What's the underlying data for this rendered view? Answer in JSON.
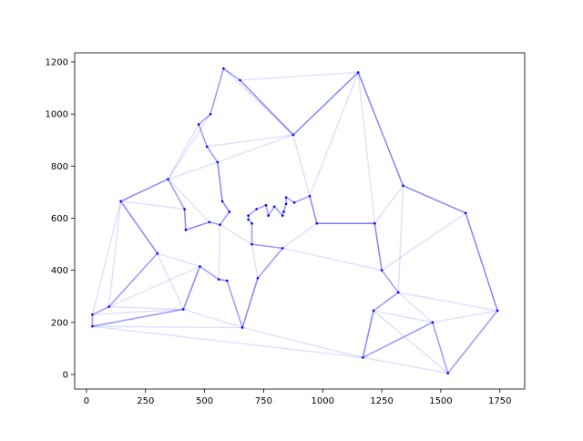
{
  "chart_data": {
    "type": "network",
    "x": [
      565,
      25,
      345,
      945,
      845,
      880,
      25,
      525,
      580,
      650,
      1605,
      1220,
      1465,
      1530,
      845,
      725,
      145,
      415,
      510,
      560,
      300,
      520,
      480,
      835,
      975,
      1215,
      1320,
      1250,
      660,
      410,
      420,
      575,
      1150,
      700,
      685,
      685,
      770,
      795,
      720,
      760,
      475,
      95,
      875,
      700,
      555,
      830,
      1170,
      830,
      605,
      595,
      1340,
      1740
    ],
    "y": [
      575,
      185,
      750,
      685,
      655,
      660,
      230,
      1000,
      1175,
      1130,
      620,
      580,
      200,
      5,
      680,
      370,
      665,
      635,
      875,
      365,
      465,
      585,
      415,
      625,
      580,
      245,
      315,
      400,
      180,
      250,
      555,
      665,
      1160,
      580,
      595,
      610,
      610,
      645,
      635,
      650,
      960,
      260,
      920,
      500,
      815,
      485,
      65,
      610,
      625,
      360,
      725,
      245
    ],
    "tour": [
      0,
      48,
      31,
      44,
      18,
      40,
      7,
      8,
      9,
      42,
      32,
      50,
      10,
      51,
      13,
      12,
      46,
      25,
      26,
      27,
      11,
      24,
      3,
      5,
      14,
      4,
      23,
      47,
      37,
      36,
      39,
      38,
      35,
      34,
      33,
      43,
      45,
      15,
      28,
      49,
      19,
      22,
      29,
      1,
      6,
      41,
      20,
      16,
      2,
      17,
      30,
      21,
      0
    ],
    "edges": [
      [
        32,
        42
      ],
      [
        32,
        11
      ],
      [
        32,
        50
      ],
      [
        32,
        9
      ],
      [
        42,
        3
      ],
      [
        42,
        44
      ],
      [
        42,
        18
      ],
      [
        16,
        2
      ],
      [
        16,
        20
      ],
      [
        16,
        41
      ],
      [
        29,
        28
      ],
      [
        29,
        41
      ],
      [
        28,
        46
      ],
      [
        46,
        13
      ],
      [
        46,
        25
      ],
      [
        12,
        51
      ],
      [
        10,
        51
      ],
      [
        10,
        50
      ],
      [
        50,
        11
      ],
      [
        11,
        27
      ],
      [
        11,
        24
      ],
      [
        24,
        3
      ],
      [
        44,
        31
      ],
      [
        31,
        48
      ],
      [
        2,
        44
      ],
      [
        21,
        30
      ],
      [
        30,
        17
      ],
      [
        19,
        49
      ],
      [
        22,
        20
      ],
      [
        20,
        29
      ],
      [
        29,
        22
      ],
      [
        15,
        43
      ],
      [
        45,
        24
      ],
      [
        1,
        28
      ],
      [
        6,
        16
      ],
      [
        9,
        42
      ],
      [
        7,
        2
      ],
      [
        40,
        2
      ],
      [
        12,
        25
      ],
      [
        26,
        12
      ],
      [
        50,
        26
      ],
      [
        13,
        25
      ],
      [
        41,
        22
      ],
      [
        2,
        21
      ],
      [
        17,
        16
      ],
      [
        0,
        19
      ],
      [
        15,
        28
      ],
      [
        45,
        27
      ],
      [
        24,
        11
      ],
      [
        43,
        0
      ],
      [
        3,
        32
      ],
      [
        8,
        42
      ],
      [
        10,
        27
      ],
      [
        51,
        26
      ],
      [
        1,
        46
      ],
      [
        6,
        29
      ]
    ],
    "color": "#0000ff",
    "xlim": [
      -50,
      1855
    ],
    "ylim": [
      -56,
      1235
    ],
    "xticks": [
      0,
      250,
      500,
      750,
      1000,
      1250,
      1500,
      1750
    ],
    "yticks": [
      0,
      200,
      400,
      600,
      800,
      1000,
      1200
    ]
  }
}
